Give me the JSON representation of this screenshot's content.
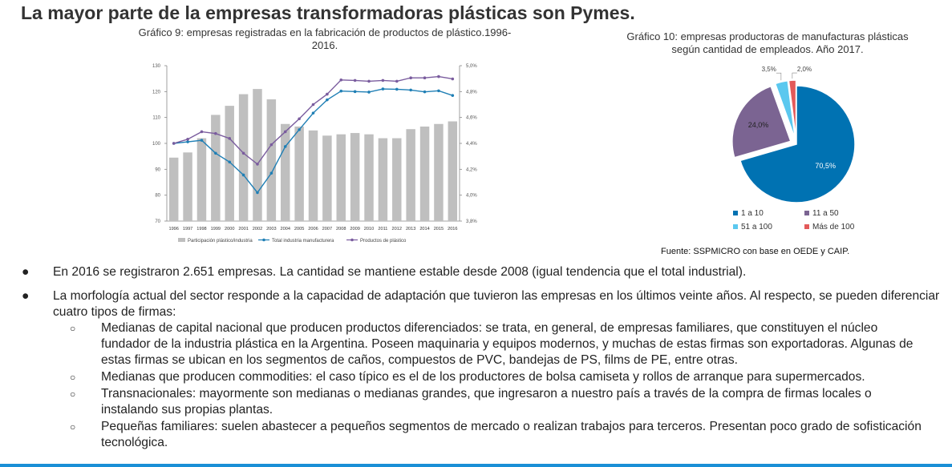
{
  "page": {
    "title": "La mayor parte de la empresas transformadoras plásticas son Pymes.",
    "source": "Fuente: SSPMICRO con base en OEDE y CAIP."
  },
  "colors": {
    "bar": "#bfbfbf",
    "total_line": "#1f7fb5",
    "plastic_line": "#7a5c9e",
    "pie_1a10": "#0072b2",
    "pie_11a50": "#7b6492",
    "pie_51a100": "#5bc8ef",
    "pie_mas100": "#e35a5a",
    "accent_bar": "#1a8fd6"
  },
  "chart_data": [
    {
      "type": "bar",
      "title": "Gráfico 9:  empresas registradas en la fabricación de productos de plástico.1996-2016.",
      "categories": [
        "1996",
        "1997",
        "1998",
        "1999",
        "2000",
        "2001",
        "2002",
        "2003",
        "2004",
        "2005",
        "2006",
        "2007",
        "2008",
        "2009",
        "2010",
        "2011",
        "2012",
        "2013",
        "2014",
        "2015",
        "2016"
      ],
      "ylim": [
        70,
        130
      ],
      "yticks": [
        "70",
        "80",
        "90",
        "100",
        "110",
        "120",
        "130"
      ],
      "y2lim": [
        3.8,
        5.0
      ],
      "y2ticks": [
        "3,8%",
        "4,0%",
        "4,2%",
        "4,4%",
        "4,6%",
        "4,8%",
        "5,0%"
      ],
      "series": [
        {
          "name": "Participación plástico/industria",
          "kind": "bar",
          "axis": "right",
          "values": [
            4.29,
            4.33,
            4.44,
            4.62,
            4.69,
            4.78,
            4.82,
            4.74,
            4.55,
            4.53,
            4.5,
            4.46,
            4.47,
            4.48,
            4.47,
            4.44,
            4.44,
            4.51,
            4.53,
            4.55,
            4.57
          ]
        },
        {
          "name": "Total industria manufacturera",
          "kind": "line",
          "axis": "left",
          "values": [
            100,
            100.6,
            101.2,
            96.2,
            92.8,
            87.8,
            81.0,
            88.5,
            98.8,
            105.3,
            111.7,
            116.8,
            120.2,
            120.0,
            119.8,
            121.0,
            120.9,
            120.6,
            119.9,
            120.3,
            118.5
          ]
        },
        {
          "name": "Productos de plástico",
          "kind": "line",
          "axis": "left",
          "values": [
            100,
            101.6,
            104.5,
            103.8,
            101.9,
            96.2,
            92.0,
            99.5,
            104.5,
            109.5,
            115.0,
            119.0,
            124.5,
            124.3,
            124.0,
            124.3,
            124.0,
            125.3,
            125.3,
            125.8,
            124.9
          ]
        }
      ]
    },
    {
      "type": "pie",
      "title": "Gráfico 10:  empresas productoras de manufacturas plásticas según cantidad de empleados. Año 2017.",
      "slices": [
        {
          "label": "1 a 10",
          "value": 70.5,
          "display": "70,5%"
        },
        {
          "label": "11 a 50",
          "value": 24.0,
          "display": "24,0%"
        },
        {
          "label": "51 a 100",
          "value": 3.5,
          "display": "3,5%"
        },
        {
          "label": "Más de 100",
          "value": 2.0,
          "display": "2,0%"
        }
      ],
      "legend": "bottom"
    }
  ],
  "bullets": [
    {
      "text": "En 2016 se registraron 2.651 empresas.  La cantidad se mantiene  estable desde 2008 (igual tendencia que el total industrial).",
      "sub": []
    },
    {
      "text": "La morfología actual del sector responde a la capacidad de adaptación que tuvieron las empresas en los últimos veinte años. Al respecto, se pueden diferenciar cuatro tipos de firmas:",
      "sub": [
        "Medianas de capital nacional que producen productos diferenciados: se trata, en general, de empresas familiares, que constituyen el núcleo fundador de la industria plástica en la Argentina. Poseen maquinaria y equipos modernos, y muchas de estas firmas son exportadoras. Algunas de estas firmas se ubican en los segmentos de caños, compuestos de PVC, bandejas de PS, films de PE, entre otras.",
        "Medianas que producen commodities: el caso típico es el de los productores de bolsa camiseta y rollos de arranque para supermercados.",
        "Transnacionales: mayormente son medianas o medianas grandes, que ingresaron a nuestro país a través de la compra de firmas locales o instalando sus propias plantas.",
        "Pequeñas familiares: suelen abastecer a pequeños segmentos de mercado o realizan trabajos para terceros. Presentan poco grado de sofisticación tecnológica."
      ]
    }
  ],
  "bullet_symbols": {
    "main": "●",
    "sub": "○"
  }
}
